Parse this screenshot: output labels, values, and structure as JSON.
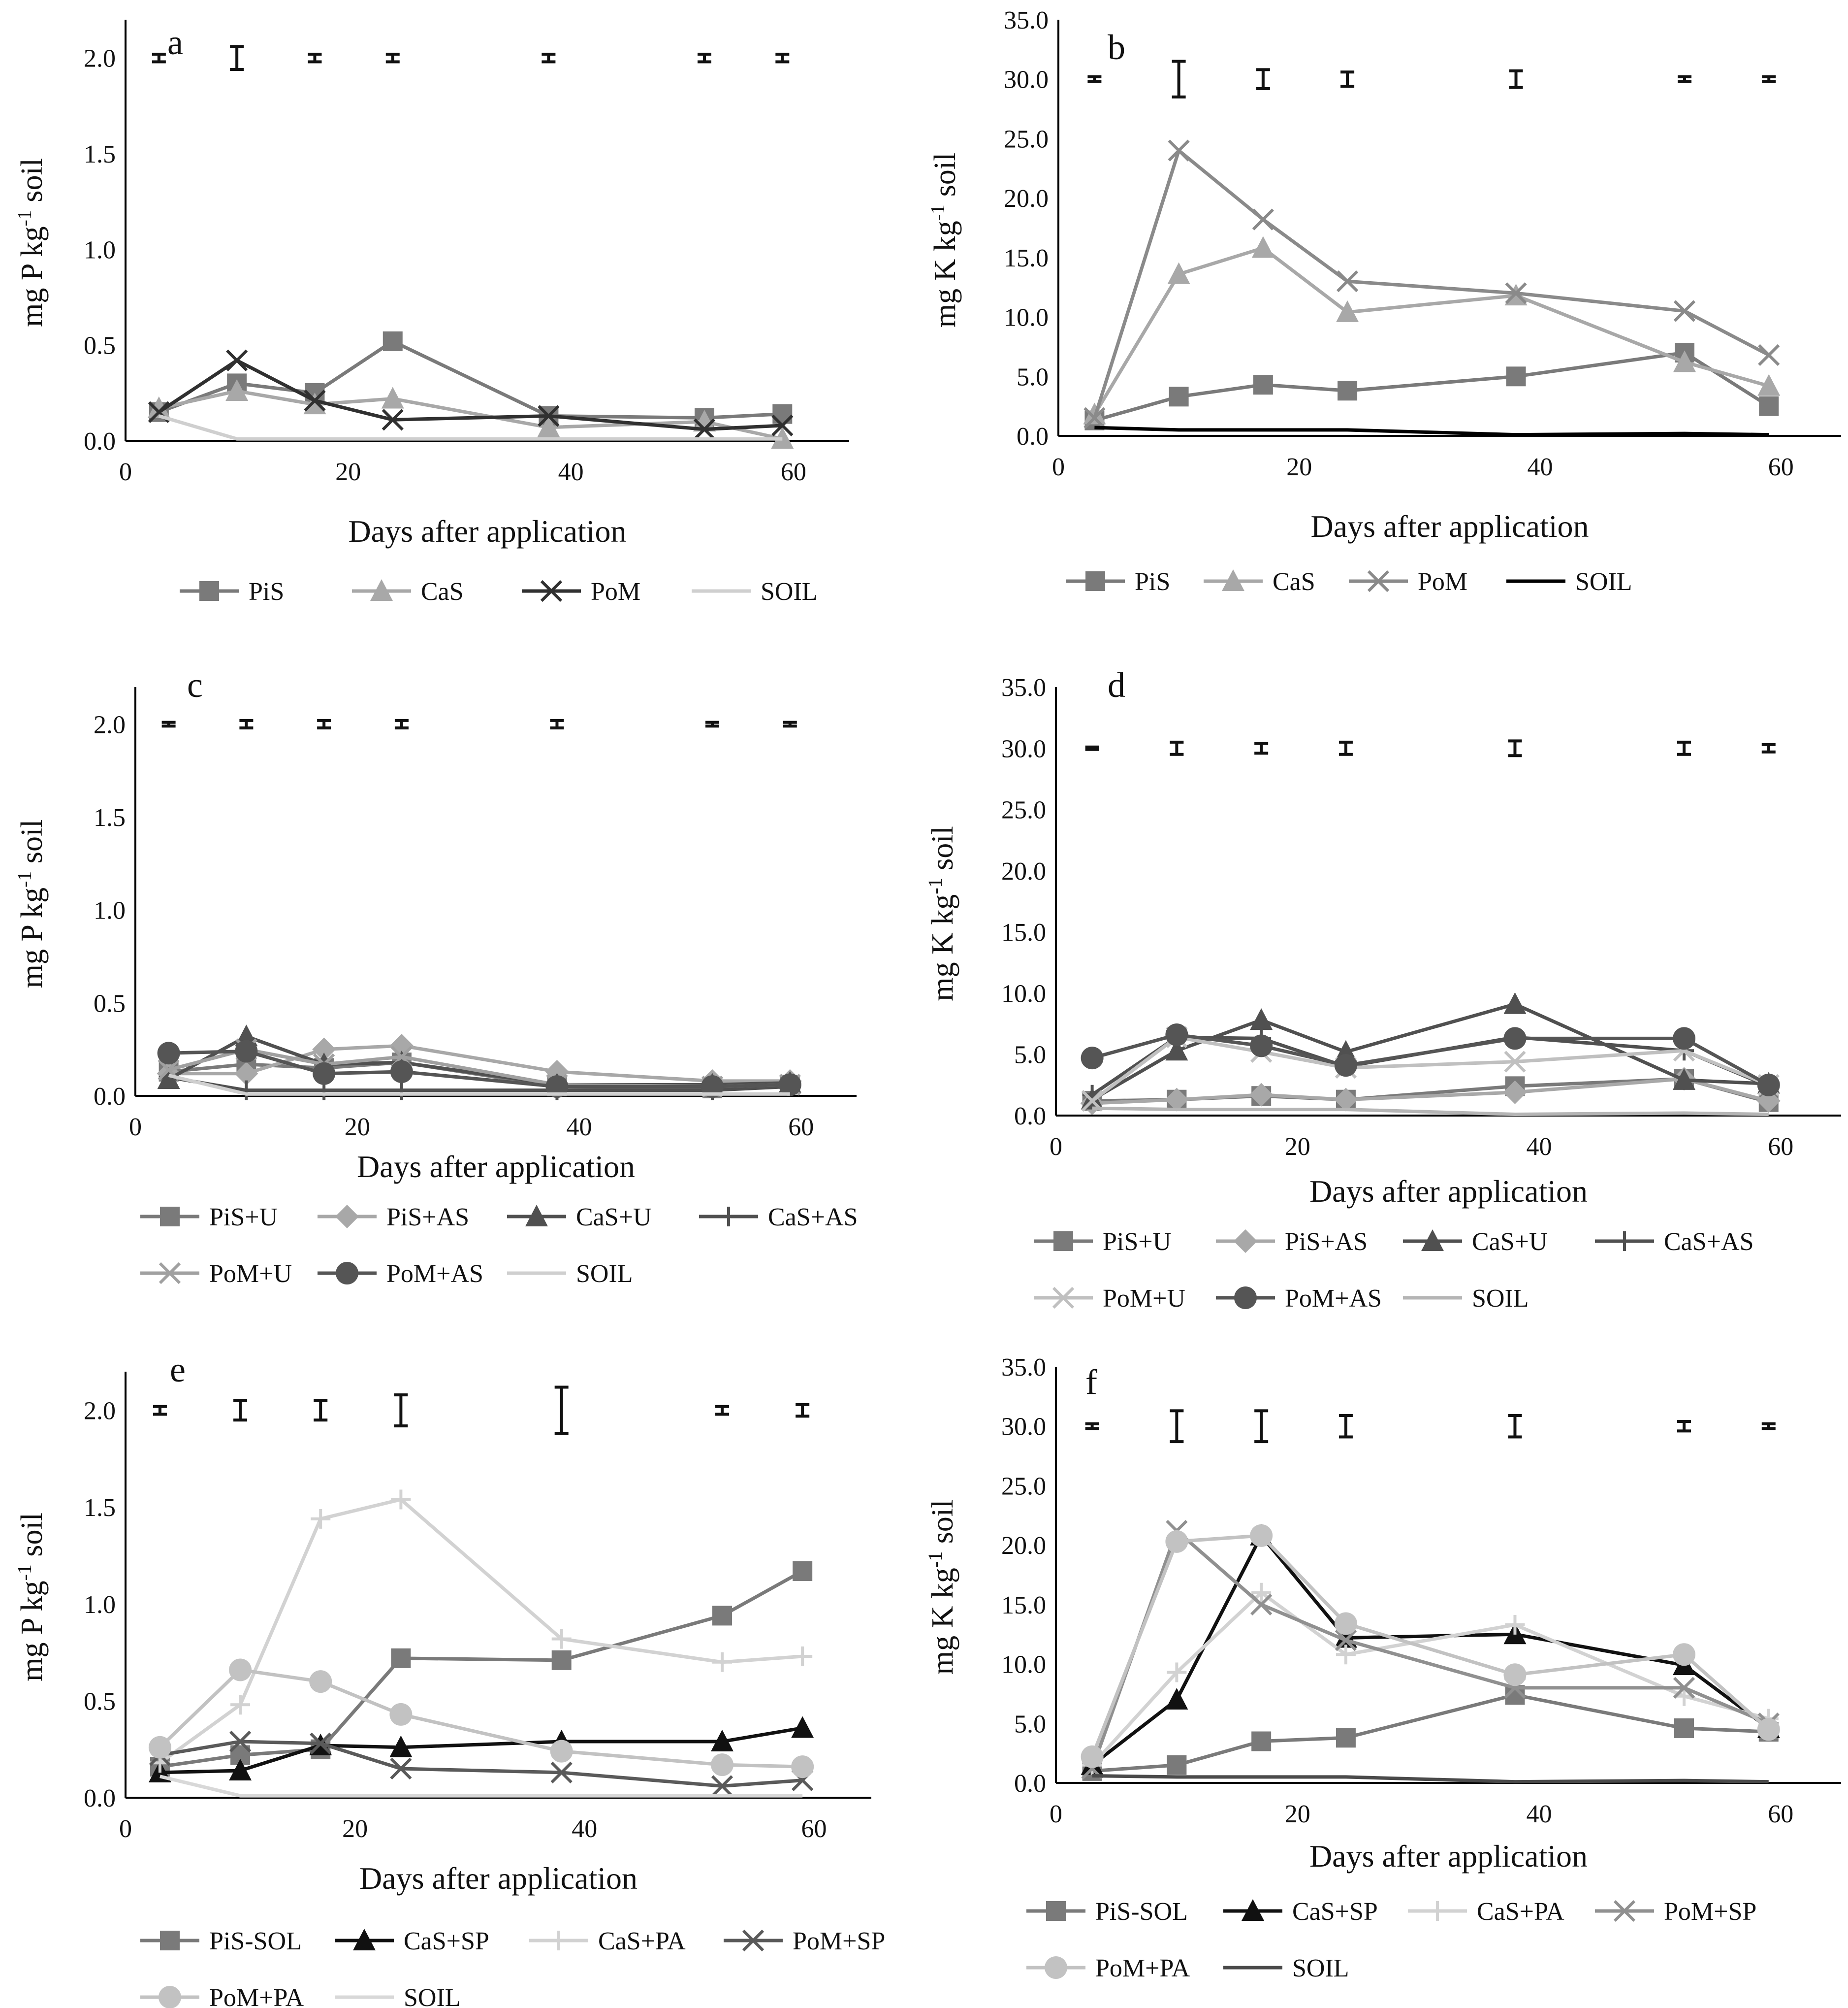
{
  "figure": {
    "alt": "Six line charts of available P and K in soil over days after application"
  },
  "chart_data": [
    {
      "panel_letter": "a",
      "type": "line",
      "ylabel": "mg P kg-1 soil",
      "ylabel_base": "mg P kg",
      "ylabel_sup": "-1",
      "ylabel_unit": " soil",
      "xlabel": "Days after application",
      "xlim": [
        0,
        65
      ],
      "ylim": [
        0,
        2.2
      ],
      "xticks": [
        0,
        20,
        40,
        60
      ],
      "xtick_labels": [
        "0",
        "20",
        "40",
        "60"
      ],
      "yticks": [
        0,
        0.5,
        1.0,
        1.5,
        2.0
      ],
      "ytick_labels": [
        "0.0",
        "0.5",
        "1.0",
        "1.5",
        "2.0"
      ],
      "x": [
        3,
        10,
        17,
        24,
        38,
        52,
        59
      ],
      "series": [
        {
          "name": "PiS",
          "values": [
            0.15,
            0.3,
            0.25,
            0.52,
            0.13,
            0.12,
            0.14
          ],
          "color": "#7a7a7a",
          "marker": "square"
        },
        {
          "name": "CaS",
          "values": [
            0.17,
            0.26,
            0.19,
            0.22,
            0.07,
            0.1,
            0.01
          ],
          "color": "#a8a8a8",
          "marker": "triangle"
        },
        {
          "name": "PoM",
          "values": [
            0.15,
            0.42,
            0.21,
            0.11,
            0.13,
            0.06,
            0.08
          ],
          "color": "#303030",
          "marker": "x"
        },
        {
          "name": "SOIL",
          "values": [
            0.13,
            0.01,
            0.01,
            0.01,
            0.01,
            0.01,
            0.01
          ],
          "color": "#cfcfcf",
          "marker": "none"
        }
      ],
      "error_bars": {
        "y": 2.0,
        "half_heights": [
          0.02,
          0.06,
          0.02,
          0.02,
          0.02,
          0.02,
          0.02
        ]
      }
    },
    {
      "panel_letter": "b",
      "type": "line",
      "ylabel": "mg K kg-1 soil",
      "ylabel_base": "mg K kg",
      "ylabel_sup": "-1",
      "ylabel_unit": " soil",
      "xlabel": "Days after application",
      "xlim": [
        0,
        65
      ],
      "ylim": [
        0,
        35
      ],
      "xticks": [
        0,
        20,
        40,
        60
      ],
      "xtick_labels": [
        "0",
        "20",
        "40",
        "60"
      ],
      "yticks": [
        0,
        5,
        10,
        15,
        20,
        25,
        30,
        35
      ],
      "ytick_labels": [
        "0.0",
        "5.0",
        "10.0",
        "15.0",
        "20.0",
        "25.0",
        "30.0",
        "35.0"
      ],
      "x": [
        3,
        10,
        17,
        24,
        38,
        52,
        59
      ],
      "series": [
        {
          "name": "PiS",
          "values": [
            1.3,
            3.3,
            4.3,
            3.8,
            5.0,
            7.0,
            2.5
          ],
          "color": "#7a7a7a",
          "marker": "square"
        },
        {
          "name": "CaS",
          "values": [
            1.8,
            13.6,
            15.8,
            10.4,
            11.8,
            6.2,
            4.2
          ],
          "color": "#a8a8a8",
          "marker": "triangle"
        },
        {
          "name": "PoM",
          "values": [
            1.5,
            24.0,
            18.2,
            13.0,
            12.0,
            10.5,
            6.8
          ],
          "color": "#8a8a8a",
          "marker": "x"
        },
        {
          "name": "SOIL",
          "values": [
            0.7,
            0.5,
            0.5,
            0.5,
            0.1,
            0.2,
            0.1
          ],
          "color": "#000000",
          "marker": "none"
        }
      ],
      "error_bars": {
        "y": 30.0,
        "half_heights": [
          0.2,
          1.5,
          0.8,
          0.6,
          0.7,
          0.2,
          0.2
        ]
      }
    },
    {
      "panel_letter": "c",
      "type": "line",
      "ylabel": "mg P kg-1 soil",
      "ylabel_base": "mg P kg",
      "ylabel_sup": "-1",
      "ylabel_unit": " soil",
      "xlabel": "Days after application",
      "xlim": [
        0,
        65
      ],
      "ylim": [
        0,
        2.2
      ],
      "xticks": [
        0,
        20,
        40,
        60
      ],
      "xtick_labels": [
        "0",
        "20",
        "40",
        "60"
      ],
      "yticks": [
        0,
        0.5,
        1.0,
        1.5,
        2.0
      ],
      "ytick_labels": [
        "0.0",
        "0.5",
        "1.0",
        "1.5",
        "2.0"
      ],
      "x": [
        3,
        10,
        17,
        24,
        38,
        52,
        59
      ],
      "series": [
        {
          "name": "PiS+U",
          "values": [
            0.13,
            0.17,
            0.15,
            0.18,
            0.05,
            0.04,
            0.06
          ],
          "color": "#7a7a7a",
          "marker": "square"
        },
        {
          "name": "PiS+AS",
          "values": [
            0.12,
            0.12,
            0.25,
            0.27,
            0.13,
            0.08,
            0.08
          ],
          "color": "#a8a8a8",
          "marker": "diamond"
        },
        {
          "name": "CaS+U",
          "values": [
            0.09,
            0.32,
            0.17,
            0.18,
            0.06,
            0.06,
            0.07
          ],
          "color": "#505050",
          "marker": "triangle"
        },
        {
          "name": "CaS+AS",
          "values": [
            0.1,
            0.03,
            0.03,
            0.03,
            0.03,
            0.03,
            0.05
          ],
          "color": "#505050",
          "marker": "plus"
        },
        {
          "name": "PoM+U",
          "values": [
            0.14,
            0.25,
            0.17,
            0.21,
            0.06,
            0.05,
            0.06
          ],
          "color": "#a0a0a0",
          "marker": "x"
        },
        {
          "name": "PoM+AS",
          "values": [
            0.23,
            0.24,
            0.12,
            0.13,
            0.05,
            0.05,
            0.06
          ],
          "color": "#555555",
          "marker": "circle"
        },
        {
          "name": "SOIL",
          "values": [
            0.11,
            0.01,
            0.01,
            0.01,
            0.01,
            0.01,
            0.01
          ],
          "color": "#cfcfcf",
          "marker": "none"
        }
      ],
      "error_bars": {
        "y": 2.0,
        "half_heights": [
          0.01,
          0.02,
          0.02,
          0.02,
          0.02,
          0.01,
          0.01
        ]
      }
    },
    {
      "panel_letter": "d",
      "type": "line",
      "ylabel": "mg K kg-1 soil",
      "ylabel_base": "mg K kg",
      "ylabel_sup": "-1",
      "ylabel_unit": " soil",
      "xlabel": "Days after application",
      "xlim": [
        0,
        65
      ],
      "ylim": [
        0,
        35
      ],
      "xticks": [
        0,
        20,
        40,
        60
      ],
      "xtick_labels": [
        "0",
        "20",
        "40",
        "60"
      ],
      "yticks": [
        0,
        5,
        10,
        15,
        20,
        25,
        30,
        35
      ],
      "ytick_labels": [
        "0.0",
        "5.0",
        "10.0",
        "15.0",
        "20.0",
        "25.0",
        "30.0",
        "35.0"
      ],
      "x": [
        3,
        10,
        17,
        24,
        38,
        52,
        59
      ],
      "series": [
        {
          "name": "PiS+U",
          "values": [
            1.2,
            1.3,
            1.6,
            1.3,
            2.4,
            3.0,
            1.1
          ],
          "color": "#7a7a7a",
          "marker": "square"
        },
        {
          "name": "PiS+AS",
          "values": [
            1.0,
            1.3,
            1.7,
            1.3,
            1.9,
            3.0,
            1.2
          ],
          "color": "#a8a8a8",
          "marker": "diamond"
        },
        {
          "name": "CaS+U",
          "values": [
            1.3,
            5.3,
            7.8,
            5.2,
            9.1,
            2.9,
            2.6
          ],
          "color": "#505050",
          "marker": "triangle"
        },
        {
          "name": "CaS+AS",
          "values": [
            1.7,
            6.4,
            6.3,
            4.0,
            6.4,
            5.3,
            2.4
          ],
          "color": "#505050",
          "marker": "plus"
        },
        {
          "name": "PoM+U",
          "values": [
            1.2,
            6.4,
            5.2,
            3.9,
            4.4,
            5.3,
            2.5
          ],
          "color": "#c0c0c0",
          "marker": "x"
        },
        {
          "name": "PoM+AS",
          "values": [
            4.7,
            6.6,
            5.7,
            4.1,
            6.3,
            6.3,
            2.5
          ],
          "color": "#555555",
          "marker": "circle"
        },
        {
          "name": "SOIL",
          "values": [
            0.6,
            0.5,
            0.5,
            0.5,
            0.1,
            0.2,
            0.1
          ],
          "color": "#b5b5b5",
          "marker": "none"
        }
      ],
      "error_bars": {
        "y": 30.0,
        "half_heights": [
          0.1,
          0.5,
          0.4,
          0.5,
          0.6,
          0.5,
          0.3
        ]
      }
    },
    {
      "panel_letter": "e",
      "type": "line",
      "ylabel": "mg P kg-1 soil",
      "ylabel_base": "mg P kg",
      "ylabel_sup": "-1",
      "ylabel_unit": " soil",
      "xlabel": "Days after application",
      "xlim": [
        0,
        65
      ],
      "ylim": [
        0,
        2.2
      ],
      "xticks": [
        0,
        20,
        40,
        60
      ],
      "xtick_labels": [
        "0",
        "20",
        "40",
        "60"
      ],
      "yticks": [
        0,
        0.5,
        1.0,
        1.5,
        2.0
      ],
      "ytick_labels": [
        "0.0",
        "0.5",
        "1.0",
        "1.5",
        "2.0"
      ],
      "x": [
        3,
        10,
        17,
        24,
        38,
        52,
        59
      ],
      "series": [
        {
          "name": "PiS-SOL",
          "values": [
            0.16,
            0.22,
            0.25,
            0.72,
            0.71,
            0.94,
            1.17
          ],
          "color": "#7a7a7a",
          "marker": "square"
        },
        {
          "name": "CaS+SP",
          "values": [
            0.13,
            0.14,
            0.27,
            0.26,
            0.29,
            0.29,
            0.36
          ],
          "color": "#111111",
          "marker": "triangle"
        },
        {
          "name": "CaS+PA",
          "values": [
            0.18,
            0.48,
            1.44,
            1.54,
            0.82,
            0.7,
            0.73
          ],
          "color": "#d2d2d2",
          "marker": "plus"
        },
        {
          "name": "PoM+SP",
          "values": [
            0.22,
            0.29,
            0.28,
            0.15,
            0.13,
            0.06,
            0.09
          ],
          "color": "#5a5a5a",
          "marker": "x"
        },
        {
          "name": "PoM+PA",
          "values": [
            0.26,
            0.66,
            0.6,
            0.43,
            0.24,
            0.17,
            0.16
          ],
          "color": "#c2c2c2",
          "marker": "circle"
        },
        {
          "name": "SOIL",
          "values": [
            0.11,
            0.01,
            0.01,
            0.01,
            0.01,
            0.01,
            0.01
          ],
          "color": "#d8d8d8",
          "marker": "none"
        }
      ],
      "error_bars": {
        "y": 2.0,
        "half_heights": [
          0.02,
          0.05,
          0.05,
          0.08,
          0.12,
          0.02,
          0.03
        ]
      }
    },
    {
      "panel_letter": "f",
      "type": "line",
      "ylabel": "mg K kg-1 soil",
      "ylabel_base": "mg K kg",
      "ylabel_sup": "-1",
      "ylabel_unit": " soil",
      "xlabel": "Days after application",
      "xlim": [
        0,
        65
      ],
      "ylim": [
        0,
        35
      ],
      "xticks": [
        0,
        20,
        40,
        60
      ],
      "xtick_labels": [
        "0",
        "20",
        "40",
        "60"
      ],
      "yticks": [
        0,
        5,
        10,
        15,
        20,
        25,
        30,
        35
      ],
      "ytick_labels": [
        "0.0",
        "5.0",
        "10.0",
        "15.0",
        "20.0",
        "25.0",
        "30.0",
        "35.0"
      ],
      "x": [
        3,
        10,
        17,
        24,
        38,
        52,
        59
      ],
      "series": [
        {
          "name": "PiS-SOL",
          "values": [
            1.0,
            1.5,
            3.5,
            3.8,
            7.4,
            4.6,
            4.3
          ],
          "color": "#7a7a7a",
          "marker": "square"
        },
        {
          "name": "CaS+SP",
          "values": [
            1.5,
            7.0,
            20.8,
            12.2,
            12.5,
            9.9,
            4.6
          ],
          "color": "#111111",
          "marker": "triangle"
        },
        {
          "name": "CaS+PA",
          "values": [
            1.5,
            9.3,
            16.0,
            10.8,
            13.3,
            7.3,
            5.4
          ],
          "color": "#d2d2d2",
          "marker": "plus"
        },
        {
          "name": "PoM+SP",
          "values": [
            1.2,
            21.2,
            15.0,
            12.0,
            8.0,
            8.0,
            5.0
          ],
          "color": "#909090",
          "marker": "x"
        },
        {
          "name": "PoM+PA",
          "values": [
            2.2,
            20.3,
            20.8,
            13.4,
            9.1,
            10.8,
            4.5
          ],
          "color": "#c2c2c2",
          "marker": "circle"
        },
        {
          "name": "SOIL",
          "values": [
            0.6,
            0.5,
            0.5,
            0.5,
            0.1,
            0.2,
            0.1
          ],
          "color": "#4a4a4a",
          "marker": "none"
        }
      ],
      "error_bars": {
        "y": 30.0,
        "half_heights": [
          0.2,
          1.3,
          1.3,
          0.9,
          0.9,
          0.4,
          0.2
        ]
      }
    }
  ]
}
